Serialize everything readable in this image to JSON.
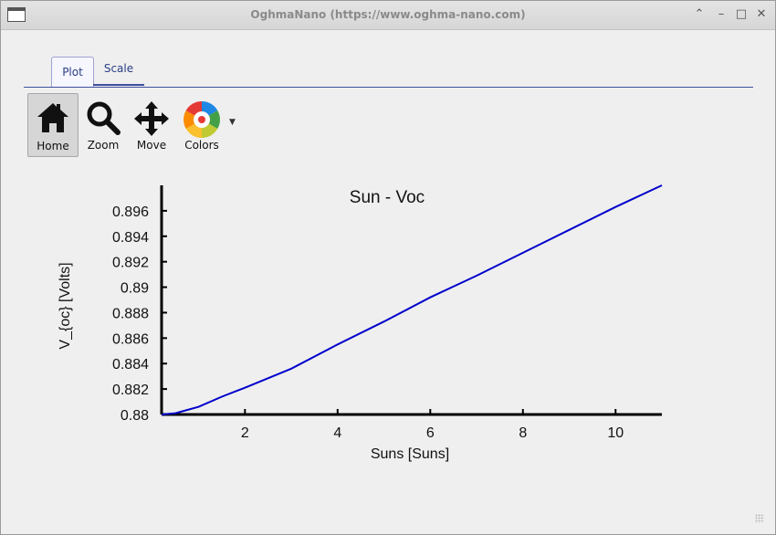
{
  "window": {
    "title": "OghmaNano (https://www.oghma-nano.com)"
  },
  "tabs": [
    {
      "label": "Plot"
    },
    {
      "label": "Scale"
    }
  ],
  "toolbar": {
    "home_label": "Home",
    "zoom_label": "Zoom",
    "move_label": "Move",
    "colors_label": "Colors"
  },
  "colors": {
    "series": "#0000cc",
    "accent": "#3e4f9d"
  },
  "chart_data": {
    "type": "line",
    "title": "Sun - Voc",
    "xlabel": "Suns [Suns]",
    "ylabel": "V_{oc} [Volts]",
    "xlim": [
      0.2,
      11.0
    ],
    "ylim": [
      0.88,
      0.898
    ],
    "xticks": [
      2,
      4,
      6,
      8,
      10
    ],
    "yticks": [
      0.88,
      0.882,
      0.884,
      0.886,
      0.888,
      0.89,
      0.892,
      0.894,
      0.896
    ],
    "ytick_labels": [
      "0.88",
      "0.882",
      "0.884",
      "0.886",
      "0.888",
      "0.89",
      "0.892",
      "0.894",
      "0.896"
    ],
    "grid": false,
    "series": [
      {
        "x": [
          0.2,
          0.5,
          1.0,
          1.5,
          2.0,
          3.0,
          4.0,
          5.0,
          6.0,
          7.0,
          8.0,
          9.0,
          10.0,
          11.0
        ],
        "y": [
          0.88,
          0.8801,
          0.8806,
          0.8814,
          0.8821,
          0.8836,
          0.8855,
          0.8873,
          0.8892,
          0.8909,
          0.8927,
          0.8945,
          0.8963,
          0.898
        ]
      }
    ]
  }
}
